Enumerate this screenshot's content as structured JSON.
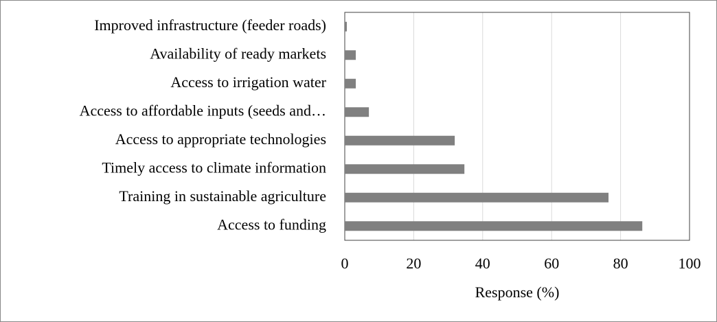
{
  "chart_data": {
    "type": "bar",
    "orientation": "horizontal",
    "categories": [
      "Access to funding",
      "Training in sustainable agriculture",
      "Timely access to climate information",
      "Access to appropriate technologies",
      "Access to affordable inputs (seeds and…",
      "Access to irrigation water",
      "Availability of ready markets",
      "Improved infrastructure (feeder roads)"
    ],
    "values": [
      86.3,
      76.5,
      34.7,
      31.9,
      7,
      3.2,
      3.2,
      0.6
    ],
    "color": "#808080",
    "xlabel": "Response (%)",
    "xlim": [
      0,
      100
    ],
    "xticks": [
      0,
      20,
      40,
      60,
      80,
      100
    ],
    "grid": true
  }
}
